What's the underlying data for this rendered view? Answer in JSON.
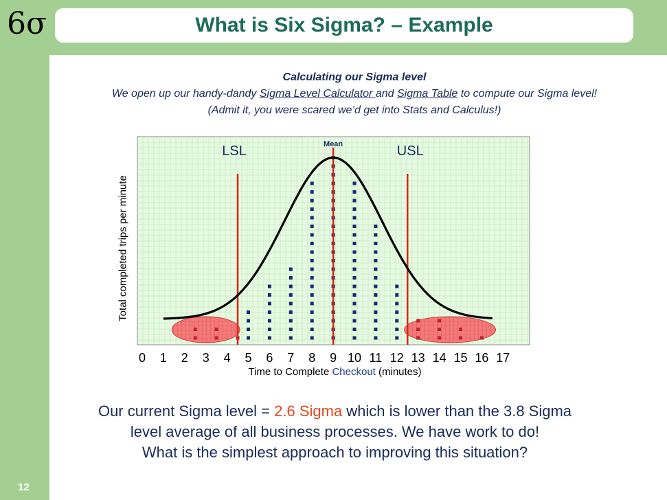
{
  "logo": {
    "text": "6σ"
  },
  "title": "What is Six Sigma? – Example",
  "slide_number": "12",
  "intro": {
    "heading": "Calculating our Sigma level",
    "line1_pre": "We open up our handy-dandy ",
    "line1_link1": "Sigma Level Calculator ",
    "line1_mid": " and ",
    "line1_link2": "Sigma Table",
    "line1_post": "  to compute our Sigma level!",
    "line2": "(Admit it,  you were scared we’d get into Stats and Calculus!)"
  },
  "summary": {
    "line1_pre": "Our current Sigma level =  ",
    "line1_value": "2.6 Sigma",
    "line1_post": " which is lower than the 3.8 Sigma",
    "line2": "level average of all business processes. We have work to do!",
    "line3": "What is the simplest approach to improving this situation?"
  },
  "colors": {
    "background_band": "#a3cf93",
    "title": "#1f6b5a",
    "plot_bg": "#e6f9e2",
    "grid": "#bfe7b5",
    "limit_line": "#d62718",
    "dot": "#152a6e",
    "defect_dot": "#c02030",
    "defect_fill": "#f47a7a",
    "accent": "#e8461d"
  },
  "chart_data": {
    "type": "scatter",
    "xlabel_pre": "Time to Complete ",
    "xlabel_highlight": "Checkout",
    "xlabel_post": " (minutes)",
    "ylabel": "Total completed trips per minute",
    "xlim": [
      0,
      17
    ],
    "x_ticks": [
      "0",
      "1",
      "2",
      "3",
      "4",
      "5",
      "6",
      "7",
      "8",
      "9",
      "10",
      "11",
      "12",
      "13",
      "14",
      "15",
      "16",
      "17"
    ],
    "limits": {
      "LSL": 4.5,
      "USL": 12.5,
      "LSL_label": "LSL",
      "USL_label": "USL",
      "mean": 9,
      "mean_label": "Mean"
    },
    "columns": [
      {
        "x": 2.5,
        "count": 2,
        "defect": true
      },
      {
        "x": 3.5,
        "count": 2,
        "defect": true
      },
      {
        "x": 4.5,
        "count": 1,
        "defect": true
      },
      {
        "x": 5,
        "count": 4,
        "defect": false
      },
      {
        "x": 6,
        "count": 7,
        "defect": false
      },
      {
        "x": 7,
        "count": 9,
        "defect": false
      },
      {
        "x": 8,
        "count": 19,
        "defect": false
      },
      {
        "x": 9,
        "count": 22,
        "defect": false
      },
      {
        "x": 10,
        "count": 19,
        "defect": false
      },
      {
        "x": 11,
        "count": 14,
        "defect": false
      },
      {
        "x": 12,
        "count": 7,
        "defect": false
      },
      {
        "x": 13,
        "count": 3,
        "defect": true
      },
      {
        "x": 14,
        "count": 3,
        "defect": true
      },
      {
        "x": 15,
        "count": 2,
        "defect": true
      },
      {
        "x": 16,
        "count": 1,
        "defect": true
      }
    ],
    "curve": {
      "mean": 9,
      "sd": 2.3,
      "baseline": 2.2,
      "peak": 21,
      "x_from": 1,
      "x_to": 16.5
    },
    "defect_regions": [
      {
        "center": 3,
        "width": 3.2
      },
      {
        "center": 14.5,
        "width": 4.3
      }
    ]
  }
}
